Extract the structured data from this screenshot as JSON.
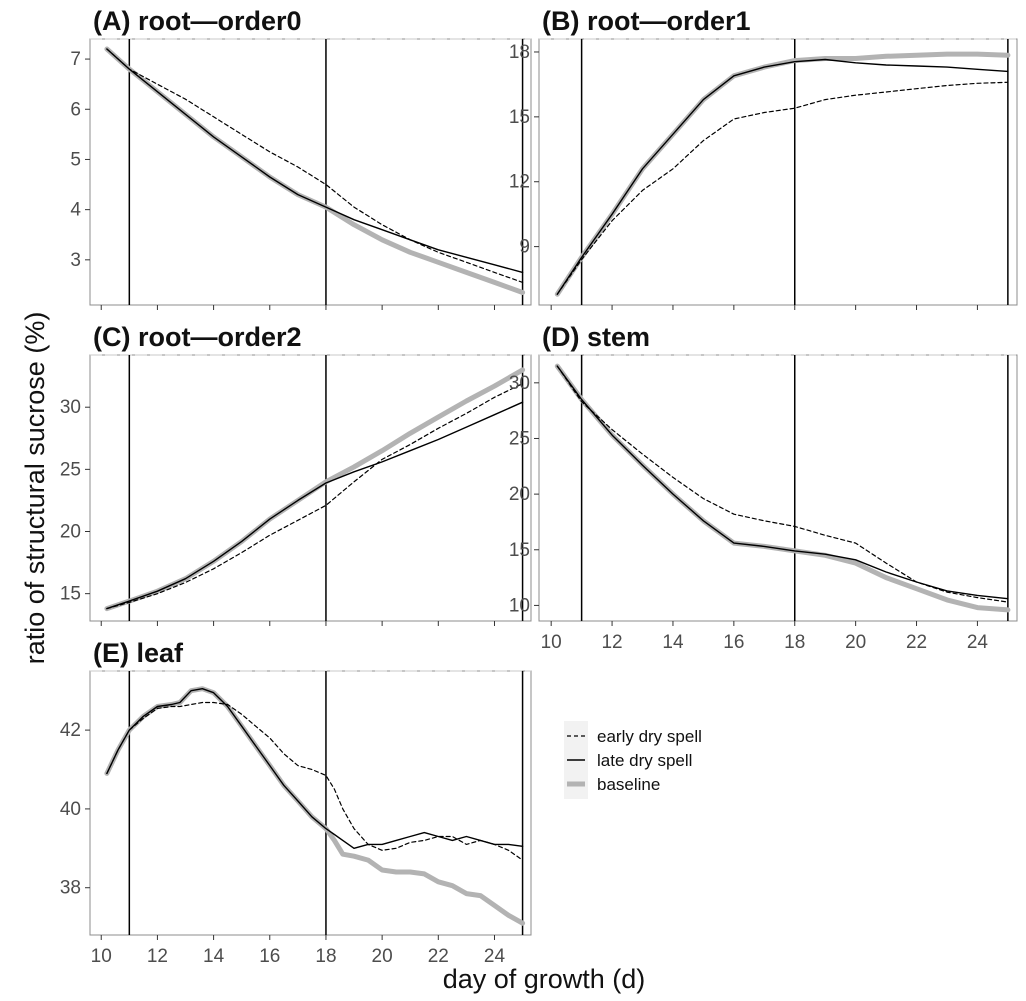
{
  "figure": {
    "ylabel": "ratio of structural sucrose (%)",
    "xlabel": "day of growth (d)"
  },
  "legend": [
    {
      "label": "early dry spell",
      "style": "dashed",
      "color": "#000000"
    },
    {
      "label": "late dry spell",
      "style": "solid",
      "color": "#000000"
    },
    {
      "label": "baseline",
      "style": "thick",
      "color": "#b3b3b3"
    }
  ],
  "chart_data": [
    {
      "type": "line",
      "title": "(A) root—order0",
      "xlim": [
        9.6,
        25.3
      ],
      "ylim": [
        2.1,
        7.4
      ],
      "yticks": [
        "3",
        "4",
        "5",
        "6",
        "7"
      ],
      "xticks": [],
      "vlines": [
        11,
        18,
        25
      ],
      "grid": false,
      "series": [
        {
          "name": "baseline",
          "x": [
            10.2,
            11,
            12,
            13,
            14,
            15,
            16,
            17,
            18,
            19,
            20,
            21,
            22,
            23,
            24,
            25
          ],
          "y": [
            7.2,
            6.8,
            6.35,
            5.9,
            5.45,
            5.05,
            4.65,
            4.3,
            4.05,
            3.7,
            3.4,
            3.15,
            2.95,
            2.75,
            2.55,
            2.35
          ]
        },
        {
          "name": "late dry spell",
          "x": [
            10.2,
            11,
            12,
            13,
            14,
            15,
            16,
            17,
            18,
            19,
            20,
            21,
            22,
            23,
            24,
            25
          ],
          "y": [
            7.2,
            6.8,
            6.35,
            5.9,
            5.45,
            5.05,
            4.65,
            4.3,
            4.05,
            3.8,
            3.6,
            3.4,
            3.2,
            3.05,
            2.9,
            2.75
          ]
        },
        {
          "name": "early dry spell",
          "x": [
            10.2,
            11,
            12,
            13,
            14,
            15,
            16,
            17,
            18,
            19,
            20,
            21,
            22,
            23,
            24,
            25
          ],
          "y": [
            7.2,
            6.8,
            6.5,
            6.2,
            5.85,
            5.5,
            5.15,
            4.85,
            4.5,
            4.05,
            3.7,
            3.4,
            3.15,
            2.95,
            2.75,
            2.55
          ]
        }
      ]
    },
    {
      "type": "line",
      "title": "(B) root—order1",
      "xlim": [
        9.6,
        25.3
      ],
      "ylim": [
        6.3,
        18.6
      ],
      "yticks": [
        "9",
        "12",
        "15",
        "18"
      ],
      "xticks": [],
      "vlines": [
        11,
        18,
        25
      ],
      "grid": false,
      "series": [
        {
          "name": "baseline",
          "x": [
            10.2,
            11,
            12,
            13,
            14,
            15,
            16,
            17,
            18,
            19,
            20,
            21,
            22,
            23,
            24,
            25
          ],
          "y": [
            6.8,
            8.5,
            10.5,
            12.6,
            14.2,
            15.8,
            16.9,
            17.3,
            17.6,
            17.7,
            17.7,
            17.8,
            17.85,
            17.9,
            17.9,
            17.85
          ]
        },
        {
          "name": "late dry spell",
          "x": [
            10.2,
            11,
            12,
            13,
            14,
            15,
            16,
            17,
            18,
            19,
            20,
            21,
            22,
            23,
            24,
            25
          ],
          "y": [
            6.8,
            8.5,
            10.5,
            12.6,
            14.2,
            15.8,
            16.9,
            17.3,
            17.55,
            17.65,
            17.5,
            17.4,
            17.35,
            17.3,
            17.2,
            17.1
          ]
        },
        {
          "name": "early dry spell",
          "x": [
            10.2,
            11,
            12,
            13,
            14,
            15,
            16,
            17,
            18,
            19,
            20,
            21,
            22,
            23,
            24,
            25
          ],
          "y": [
            6.8,
            8.4,
            10.2,
            11.6,
            12.6,
            13.9,
            14.9,
            15.2,
            15.4,
            15.8,
            16.0,
            16.15,
            16.3,
            16.45,
            16.55,
            16.6
          ]
        }
      ]
    },
    {
      "type": "line",
      "title": "(C) root—order2",
      "xlim": [
        9.6,
        25.3
      ],
      "ylim": [
        12.8,
        34.2
      ],
      "yticks": [
        "15",
        "20",
        "25",
        "30"
      ],
      "xticks": [],
      "vlines": [
        11,
        18,
        25
      ],
      "grid": false,
      "series": [
        {
          "name": "baseline",
          "x": [
            10.2,
            11,
            12,
            13,
            14,
            15,
            16,
            17,
            18,
            19,
            20,
            21,
            22,
            23,
            24,
            25
          ],
          "y": [
            13.8,
            14.4,
            15.2,
            16.2,
            17.6,
            19.2,
            21.0,
            22.5,
            24.0,
            25.2,
            26.5,
            27.9,
            29.2,
            30.5,
            31.7,
            33.0
          ]
        },
        {
          "name": "late dry spell",
          "x": [
            10.2,
            11,
            12,
            13,
            14,
            15,
            16,
            17,
            18,
            19,
            20,
            21,
            22,
            23,
            24,
            25
          ],
          "y": [
            13.8,
            14.4,
            15.2,
            16.2,
            17.6,
            19.2,
            21.0,
            22.5,
            23.9,
            24.8,
            25.6,
            26.5,
            27.4,
            28.4,
            29.4,
            30.4
          ]
        },
        {
          "name": "early dry spell",
          "x": [
            10.2,
            11,
            12,
            13,
            14,
            15,
            16,
            17,
            18,
            19,
            20,
            21,
            22,
            23,
            24,
            25
          ],
          "y": [
            13.8,
            14.3,
            15.0,
            15.9,
            17.0,
            18.3,
            19.7,
            20.9,
            22.1,
            24.0,
            25.8,
            27.0,
            28.3,
            29.5,
            30.8,
            31.9
          ]
        }
      ]
    },
    {
      "type": "line",
      "title": "(D) stem",
      "xlim": [
        9.6,
        25.3
      ],
      "ylim": [
        8.6,
        32.5
      ],
      "yticks": [
        "10",
        "15",
        "20",
        "25",
        "30"
      ],
      "xticks": [
        "10",
        "12",
        "14",
        "16",
        "18",
        "20",
        "22",
        "24"
      ],
      "vlines": [
        11,
        18,
        25
      ],
      "grid": false,
      "series": [
        {
          "name": "baseline",
          "x": [
            10.2,
            11,
            12,
            13,
            14,
            15,
            16,
            17,
            18,
            19,
            20,
            21,
            22,
            23,
            24,
            25
          ],
          "y": [
            31.5,
            28.5,
            25.3,
            22.6,
            20.0,
            17.6,
            15.6,
            15.3,
            14.9,
            14.5,
            13.8,
            12.5,
            11.5,
            10.5,
            9.8,
            9.6
          ]
        },
        {
          "name": "late dry spell",
          "x": [
            10.2,
            11,
            12,
            13,
            14,
            15,
            16,
            17,
            18,
            19,
            20,
            21,
            22,
            23,
            24,
            25
          ],
          "y": [
            31.5,
            28.5,
            25.3,
            22.6,
            20.0,
            17.6,
            15.6,
            15.3,
            14.9,
            14.6,
            14.1,
            13.0,
            12.1,
            11.3,
            10.9,
            10.6
          ]
        },
        {
          "name": "early dry spell",
          "x": [
            10.2,
            11,
            12,
            13,
            14,
            15,
            16,
            17,
            18,
            19,
            20,
            21,
            22,
            23,
            24,
            25
          ],
          "y": [
            31.5,
            28.3,
            25.8,
            23.6,
            21.5,
            19.6,
            18.2,
            17.6,
            17.1,
            16.3,
            15.6,
            13.8,
            12.1,
            11.2,
            10.7,
            10.3
          ]
        }
      ]
    },
    {
      "type": "line",
      "title": "(E) leaf",
      "xlim": [
        9.6,
        25.3
      ],
      "ylim": [
        36.8,
        43.5
      ],
      "yticks": [
        "38",
        "40",
        "42"
      ],
      "xticks": [
        "10",
        "12",
        "14",
        "16",
        "18",
        "20",
        "22",
        "24"
      ],
      "vlines": [
        11,
        18,
        25
      ],
      "grid": false,
      "series": [
        {
          "name": "baseline",
          "x": [
            10.2,
            10.6,
            11,
            11.5,
            12,
            12.5,
            12.8,
            13.2,
            13.6,
            14,
            14.5,
            15,
            15.5,
            16,
            16.5,
            17,
            17.5,
            18,
            18.3,
            18.6,
            19,
            19.5,
            20,
            20.5,
            21,
            21.5,
            22,
            22.5,
            23,
            23.5,
            24,
            24.5,
            25
          ],
          "y": [
            40.9,
            41.5,
            42.0,
            42.35,
            42.6,
            42.65,
            42.7,
            43.0,
            43.05,
            42.95,
            42.6,
            42.1,
            41.6,
            41.1,
            40.6,
            40.2,
            39.8,
            39.5,
            39.2,
            38.85,
            38.8,
            38.7,
            38.45,
            38.4,
            38.4,
            38.35,
            38.15,
            38.05,
            37.85,
            37.8,
            37.55,
            37.3,
            37.1
          ]
        },
        {
          "name": "late dry spell",
          "x": [
            10.2,
            10.6,
            11,
            11.5,
            12,
            12.5,
            12.8,
            13.2,
            13.6,
            14,
            14.5,
            15,
            15.5,
            16,
            16.5,
            17,
            17.5,
            18,
            18.3,
            18.6,
            19,
            19.5,
            20,
            20.5,
            21,
            21.5,
            22,
            22.5,
            23,
            23.5,
            24,
            24.5,
            25
          ],
          "y": [
            40.9,
            41.5,
            42.0,
            42.35,
            42.6,
            42.65,
            42.7,
            43.0,
            43.05,
            42.95,
            42.6,
            42.1,
            41.6,
            41.1,
            40.6,
            40.2,
            39.8,
            39.5,
            39.35,
            39.2,
            39.0,
            39.1,
            39.1,
            39.2,
            39.3,
            39.4,
            39.3,
            39.2,
            39.3,
            39.2,
            39.1,
            39.1,
            39.05
          ]
        },
        {
          "name": "early dry spell",
          "x": [
            10.2,
            10.6,
            11,
            11.5,
            12,
            12.5,
            12.8,
            13.2,
            13.6,
            14,
            14.5,
            15,
            15.5,
            16,
            16.5,
            17,
            17.5,
            18,
            18.3,
            18.6,
            19,
            19.5,
            20,
            20.5,
            21,
            21.5,
            22,
            22.5,
            23,
            23.5,
            24,
            24.5,
            25
          ],
          "y": [
            40.9,
            41.5,
            42.0,
            42.3,
            42.55,
            42.6,
            42.6,
            42.65,
            42.7,
            42.7,
            42.65,
            42.4,
            42.1,
            41.8,
            41.4,
            41.1,
            41.0,
            40.85,
            40.5,
            40.0,
            39.5,
            39.1,
            38.95,
            39.0,
            39.15,
            39.2,
            39.3,
            39.3,
            39.1,
            39.2,
            39.1,
            38.95,
            38.7
          ]
        }
      ]
    }
  ]
}
